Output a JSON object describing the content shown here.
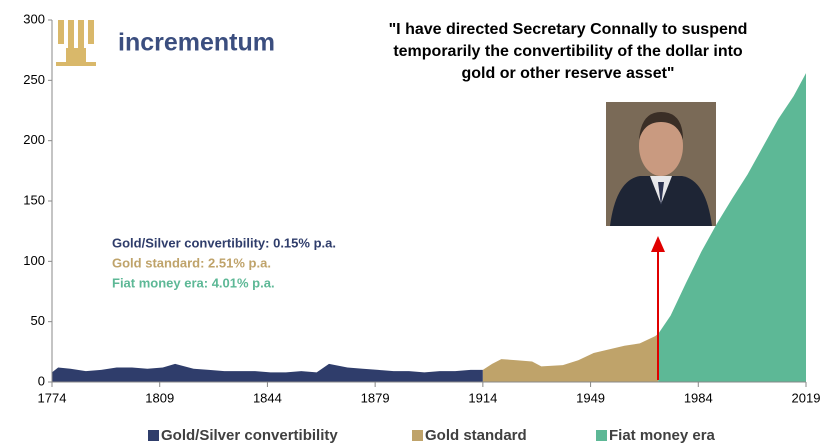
{
  "chart_data": {
    "type": "area",
    "logo_text": "incrementum",
    "quote": [
      "\"I have directed Secretary Connally to suspend",
      "temporarily the convertibility of the dollar into",
      "gold or other reserve asset\""
    ],
    "annotations": [
      {
        "text": "Gold/Silver convertibility: 0.15% p.a.",
        "color": "#2f3d6b"
      },
      {
        "text": "Gold standard: 2.51% p.a.",
        "color": "#bfa36a"
      },
      {
        "text": "Fiat money era: 4.01% p.a.",
        "color": "#5db896"
      }
    ],
    "xlim": [
      1774,
      2019
    ],
    "xticks": [
      1774,
      1809,
      1844,
      1879,
      1914,
      1949,
      1984,
      2019
    ],
    "ylim": [
      0,
      300
    ],
    "yticks": [
      0,
      50,
      100,
      150,
      200,
      250,
      300
    ],
    "series": [
      {
        "name": "Gold/Silver convertibility",
        "color": "#2f3d6b",
        "x": [
          1774,
          1776,
          1780,
          1785,
          1790,
          1795,
          1800,
          1805,
          1810,
          1814,
          1820,
          1825,
          1830,
          1835,
          1840,
          1845,
          1850,
          1855,
          1860,
          1864,
          1870,
          1875,
          1880,
          1885,
          1890,
          1895,
          1900,
          1905,
          1910,
          1914
        ],
        "values": [
          8,
          12,
          11,
          9,
          10,
          12,
          12,
          11,
          12,
          15,
          11,
          10,
          9,
          9,
          9,
          8,
          8,
          9,
          8,
          15,
          12,
          11,
          10,
          9,
          9,
          8,
          9,
          9,
          10,
          10
        ]
      },
      {
        "name": "Gold standard",
        "color": "#bfa36a",
        "x": [
          1914,
          1917,
          1920,
          1925,
          1930,
          1933,
          1940,
          1945,
          1950,
          1955,
          1960,
          1965,
          1970,
          1971
        ],
        "values": [
          10,
          15,
          19,
          18,
          17,
          13,
          14,
          18,
          24,
          27,
          30,
          32,
          38,
          40
        ]
      },
      {
        "name": "Fiat money era",
        "color": "#5db896",
        "x": [
          1971,
          1975,
          1980,
          1985,
          1990,
          1995,
          2000,
          2005,
          2010,
          2015,
          2019
        ],
        "values": [
          40,
          55,
          82,
          108,
          131,
          152,
          172,
          195,
          218,
          237,
          256
        ]
      }
    ]
  }
}
